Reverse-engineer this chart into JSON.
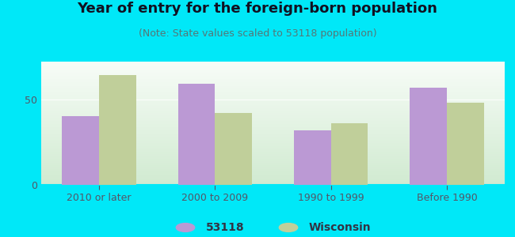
{
  "title": "Year of entry for the foreign-born population",
  "subtitle": "(Note: State values scaled to 53118 population)",
  "categories": [
    "2010 or later",
    "2000 to 2009",
    "1990 to 1999",
    "Before 1990"
  ],
  "series_53118": [
    40,
    59,
    32,
    57
  ],
  "series_wisconsin": [
    64,
    42,
    36,
    48
  ],
  "bar_color_53118": "#bb99d4",
  "bar_color_wisconsin": "#c0cf9a",
  "background_outer": "#00e8f8",
  "ylim": [
    0,
    72
  ],
  "yticks": [
    0,
    50
  ],
  "bar_width": 0.32,
  "legend_label_53118": "53118",
  "legend_label_wisconsin": "Wisconsin",
  "title_fontsize": 13,
  "subtitle_fontsize": 9,
  "tick_fontsize": 9,
  "legend_fontsize": 10,
  "grid_color": "#e0e8e0",
  "tick_color": "#555566"
}
